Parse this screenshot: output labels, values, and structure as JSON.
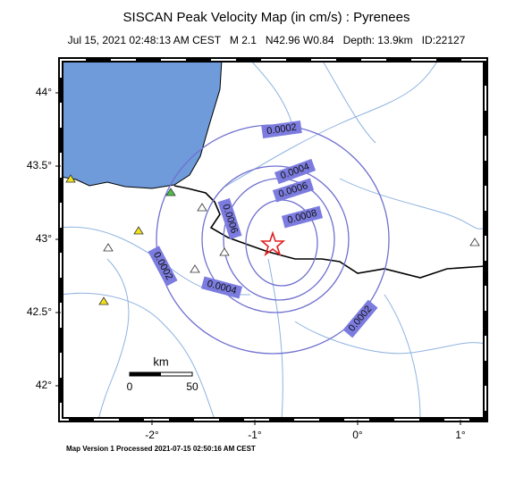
{
  "header": {
    "title": "SISCAN Peak Velocity Map (in cm/s) : Pyrenees",
    "subtitle": "Jul 15, 2021 02:48:13 AM CEST   M 2.1   N42.96 W0.84   Depth: 13.9km   ID:22127"
  },
  "map": {
    "lat_ticks": [
      {
        "value": 44,
        "label": "44°"
      },
      {
        "value": 43.5,
        "label": "43.5°"
      },
      {
        "value": 43,
        "label": "43°"
      },
      {
        "value": 42.5,
        "label": "42.5°"
      },
      {
        "value": 42,
        "label": "42°"
      }
    ],
    "lon_ticks": [
      {
        "value": -2,
        "label": "-2°"
      },
      {
        "value": -1,
        "label": "-1°"
      },
      {
        "value": 0,
        "label": "0°"
      },
      {
        "value": 1,
        "label": "1°"
      }
    ],
    "contour_labels": [
      "0.0002",
      "0.0002",
      "0.0002",
      "0.0004",
      "0.0004",
      "0.0006",
      "0.0006",
      "0.0008"
    ],
    "scale_bar": {
      "unit": "km",
      "labels": [
        "0",
        "50"
      ]
    }
  },
  "footer": "Map Version 1 Processed 2021-07-15 02:50:16 AM CEST"
}
